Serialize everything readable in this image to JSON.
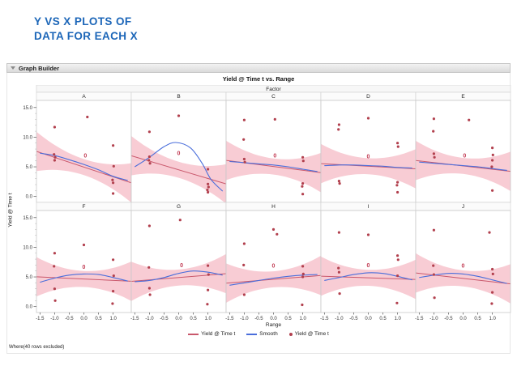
{
  "page": {
    "title_line1": "Y VS X PLOTS OF",
    "title_line2": "DATA FOR EACH X",
    "title_color": "#1C66B8",
    "footnote": "Where(40 rows excluded)"
  },
  "report": {
    "header": "Graph Builder"
  },
  "chart_data": {
    "type": "scatter",
    "title": "Yield @ Time t vs. Range",
    "facet_label": "Factor",
    "xlabel": "Range",
    "ylabel": "Yield @ Time t",
    "xlim": [
      -1.5,
      1.5
    ],
    "ylim": [
      0,
      15
    ],
    "x_ticks": [
      -1.5,
      -1.0,
      -0.5,
      0.0,
      0.5,
      1.0
    ],
    "x_tick_labels": [
      "-1.5",
      "-1.0",
      "-0.5",
      "0.0",
      "0.5",
      "1.0"
    ],
    "y_ticks": [
      0,
      5,
      10,
      15
    ],
    "y_tick_labels": [
      "0.0",
      "5.0",
      "10.0",
      "15.0"
    ],
    "zero_marker_label": "0",
    "band_halfwidth": [
      1.35,
      0.75
    ],
    "colors": {
      "point": "#B2404E",
      "fit": "#C9586C",
      "smooth": "#4A6EDB",
      "band": "#F8CCD4",
      "zero_marker": "#C13A52"
    },
    "legend": [
      {
        "type": "line",
        "color": "#C9586C",
        "label": "Yield @ Time t"
      },
      {
        "type": "line",
        "color": "#4A6EDB",
        "label": "Smooth"
      },
      {
        "type": "point",
        "color": "#B2404E",
        "label": "Yield @ Time t"
      }
    ],
    "panels": [
      {
        "label": "A",
        "fit": [
          7.4,
          2.5
        ],
        "smooth": [
          [
            -1.5,
            7.3
          ],
          [
            -1,
            6.9
          ],
          [
            -0.5,
            6.2
          ],
          [
            0,
            5.4
          ],
          [
            0.5,
            4.5
          ],
          [
            1,
            3.4
          ],
          [
            1.5,
            2.7
          ]
        ],
        "points": [
          [
            -1,
            11.7
          ],
          [
            -1.02,
            7.1
          ],
          [
            -0.98,
            6.6
          ],
          [
            -1,
            6.1
          ],
          [
            0.12,
            13.4
          ],
          [
            1,
            8.6
          ],
          [
            1.02,
            5.1
          ],
          [
            0.98,
            2.8
          ],
          [
            1,
            2.3
          ],
          [
            1,
            0.5
          ]
        ],
        "marker": [
          0.05,
          6.9
        ]
      },
      {
        "label": "B",
        "fit": [
          6.7,
          2.3
        ],
        "smooth": [
          [
            -1.5,
            5.0
          ],
          [
            -1,
            6.6
          ],
          [
            -0.5,
            8.4
          ],
          [
            -0.1,
            9.1
          ],
          [
            0.4,
            8.2
          ],
          [
            0.8,
            5.6
          ],
          [
            1.1,
            2.9
          ],
          [
            1.5,
            0.9
          ]
        ],
        "points": [
          [
            -1,
            10.9
          ],
          [
            -1,
            6.7
          ],
          [
            -1.02,
            6.1
          ],
          [
            -0.98,
            5.6
          ],
          [
            0,
            13.6
          ],
          [
            1,
            4.6
          ],
          [
            1,
            2.1
          ],
          [
            1.02,
            1.6
          ],
          [
            0.98,
            1.1
          ],
          [
            1,
            0.7
          ]
        ],
        "marker": [
          0.0,
          7.3
        ]
      },
      {
        "label": "C",
        "fit": [
          6.0,
          4.1
        ],
        "smooth": [
          [
            -1.5,
            5.9
          ],
          [
            -1,
            5.7
          ],
          [
            -0.5,
            5.5
          ],
          [
            0,
            5.3
          ],
          [
            0.5,
            5.0
          ],
          [
            1,
            4.6
          ],
          [
            1.5,
            4.2
          ]
        ],
        "points": [
          [
            -1,
            12.9
          ],
          [
            -1.02,
            9.6
          ],
          [
            -1,
            6.3
          ],
          [
            -0.98,
            5.8
          ],
          [
            0.05,
            13.0
          ],
          [
            1,
            6.6
          ],
          [
            1.02,
            6.0
          ],
          [
            1,
            2.2
          ],
          [
            0.98,
            1.7
          ],
          [
            1,
            0.4
          ]
        ],
        "marker": [
          0.05,
          6.9
        ]
      },
      {
        "label": "D",
        "fit": [
          5.5,
          4.7
        ],
        "smooth": [
          [
            -1.5,
            5.2
          ],
          [
            -1,
            5.3
          ],
          [
            -0.5,
            5.3
          ],
          [
            0,
            5.2
          ],
          [
            0.5,
            5.1
          ],
          [
            1,
            4.9
          ],
          [
            1.5,
            4.8
          ]
        ],
        "points": [
          [
            -1,
            12.1
          ],
          [
            -1.02,
            11.3
          ],
          [
            -1,
            2.6
          ],
          [
            -0.98,
            2.2
          ],
          [
            0,
            13.2
          ],
          [
            1,
            9.0
          ],
          [
            1.02,
            8.4
          ],
          [
            1,
            2.4
          ],
          [
            0.98,
            1.9
          ],
          [
            1,
            0.7
          ]
        ],
        "marker": [
          0.0,
          6.8
        ]
      },
      {
        "label": "E",
        "fit": [
          6.0,
          4.3
        ],
        "smooth": [
          [
            -1.5,
            5.8
          ],
          [
            -1,
            5.6
          ],
          [
            -0.5,
            5.4
          ],
          [
            0,
            5.2
          ],
          [
            0.5,
            5.0
          ],
          [
            1,
            4.7
          ],
          [
            1.5,
            4.4
          ]
        ],
        "points": [
          [
            -1,
            13.1
          ],
          [
            -1.02,
            11.0
          ],
          [
            -1,
            7.2
          ],
          [
            -0.98,
            6.6
          ],
          [
            0.2,
            12.9
          ],
          [
            1,
            8.2
          ],
          [
            1.02,
            7.0
          ],
          [
            1,
            6.1
          ],
          [
            0.98,
            5.0
          ],
          [
            1,
            1.0
          ]
        ],
        "marker": [
          0.05,
          6.9
        ]
      },
      {
        "label": "F",
        "fit": [
          5.0,
          4.3
        ],
        "smooth": [
          [
            -1.5,
            4.1
          ],
          [
            -1,
            4.8
          ],
          [
            -0.5,
            5.3
          ],
          [
            0,
            5.5
          ],
          [
            0.5,
            5.4
          ],
          [
            1,
            4.9
          ],
          [
            1.5,
            4.3
          ]
        ],
        "points": [
          [
            -1,
            9.0
          ],
          [
            -1.02,
            6.8
          ],
          [
            -1,
            3.0
          ],
          [
            -0.98,
            1.0
          ],
          [
            0,
            10.4
          ],
          [
            1,
            7.9
          ],
          [
            1.02,
            5.2
          ],
          [
            1,
            2.6
          ],
          [
            0.98,
            0.5
          ]
        ],
        "marker": [
          0.0,
          6.7
        ]
      },
      {
        "label": "G",
        "fit": [
          4.3,
          5.5
        ],
        "smooth": [
          [
            -1.5,
            4.2
          ],
          [
            -1,
            4.4
          ],
          [
            -0.5,
            4.9
          ],
          [
            0,
            5.6
          ],
          [
            0.5,
            6.0
          ],
          [
            1,
            5.8
          ],
          [
            1.5,
            5.3
          ]
        ],
        "points": [
          [
            -1,
            13.6
          ],
          [
            -1.02,
            6.6
          ],
          [
            -1,
            3.1
          ],
          [
            -0.98,
            2.0
          ],
          [
            0.05,
            14.6
          ],
          [
            1,
            6.9
          ],
          [
            1.02,
            5.4
          ],
          [
            1,
            2.8
          ],
          [
            0.98,
            0.4
          ]
        ],
        "marker": [
          0.1,
          7.0
        ]
      },
      {
        "label": "H",
        "fit": [
          4.0,
          5.2
        ],
        "smooth": [
          [
            -1.5,
            3.6
          ],
          [
            -1,
            4.0
          ],
          [
            -0.5,
            4.4
          ],
          [
            0,
            4.8
          ],
          [
            0.5,
            5.1
          ],
          [
            1,
            5.3
          ],
          [
            1.5,
            5.4
          ]
        ],
        "points": [
          [
            -1,
            10.6
          ],
          [
            -1.02,
            7.0
          ],
          [
            -1,
            2.0
          ],
          [
            0,
            13.0
          ],
          [
            0.12,
            12.2
          ],
          [
            1,
            6.8
          ],
          [
            1.02,
            5.5
          ],
          [
            1,
            5.0
          ],
          [
            0.98,
            0.3
          ]
        ],
        "marker": [
          0.0,
          6.9
        ]
      },
      {
        "label": "I",
        "fit": [
          5.1,
          4.6
        ],
        "smooth": [
          [
            -1.5,
            4.4
          ],
          [
            -1,
            4.9
          ],
          [
            -0.5,
            5.4
          ],
          [
            0,
            5.7
          ],
          [
            0.5,
            5.6
          ],
          [
            1,
            5.1
          ],
          [
            1.5,
            4.5
          ]
        ],
        "points": [
          [
            -1,
            12.5
          ],
          [
            -1.02,
            6.5
          ],
          [
            -1,
            5.8
          ],
          [
            -0.98,
            2.2
          ],
          [
            0,
            12.1
          ],
          [
            1,
            8.6
          ],
          [
            1.02,
            7.9
          ],
          [
            1,
            5.2
          ],
          [
            0.98,
            0.6
          ]
        ],
        "marker": [
          0.0,
          7.0
        ]
      },
      {
        "label": "J",
        "fit": [
          5.6,
          3.9
        ],
        "smooth": [
          [
            -1.5,
            4.9
          ],
          [
            -1,
            5.3
          ],
          [
            -0.5,
            5.6
          ],
          [
            0,
            5.5
          ],
          [
            0.5,
            5.1
          ],
          [
            1,
            4.5
          ],
          [
            1.5,
            3.9
          ]
        ],
        "points": [
          [
            -1,
            12.9
          ],
          [
            -1.02,
            6.9
          ],
          [
            -1,
            5.4
          ],
          [
            -0.98,
            1.5
          ],
          [
            0.9,
            12.5
          ],
          [
            1,
            6.3
          ],
          [
            1.02,
            5.5
          ],
          [
            1,
            2.4
          ],
          [
            0.98,
            0.5
          ]
        ],
        "marker": [
          0.0,
          6.9
        ]
      }
    ]
  }
}
